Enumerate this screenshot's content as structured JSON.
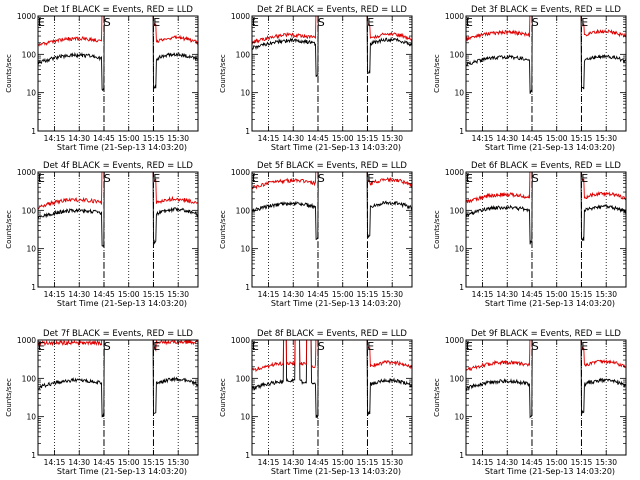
{
  "window": {
    "width": 640,
    "height": 480
  },
  "colors": {
    "events": "#000000",
    "lld": "#e00000",
    "axis": "#000000",
    "background": "#ffffff"
  },
  "chart_data": [
    {
      "type": "line",
      "title": "Det 1f BLACK = Events, RED = LLD",
      "xlabel": "Start Time (21-Sep-13 14:03:20)",
      "ylabel": "Counts/sec",
      "yscale": "log",
      "ylim": [
        1,
        1000
      ],
      "xlim": [
        "14:05",
        "15:42"
      ],
      "x_ticks": [
        "14:15",
        "14:30",
        "14:45",
        "15:00",
        "15:15",
        "15:30"
      ],
      "y_ticks": [
        "1",
        "10",
        "100",
        "1000"
      ],
      "dotted_lines": [
        "14:15",
        "14:30",
        "14:45",
        "15:00",
        "15:15",
        "15:30"
      ],
      "dashed_lines": [
        "14:45",
        "15:15"
      ],
      "markers": [
        {
          "label": "E",
          "x": "14:07"
        },
        {
          "label": "S",
          "x": "14:47"
        },
        {
          "label": "E",
          "x": "15:17"
        }
      ],
      "gap": [
        "14:45",
        "15:15"
      ],
      "series": [
        {
          "name": "Events",
          "color": "#000000",
          "peak": 95,
          "flat": false,
          "drop_before": true,
          "drop_after": true,
          "plateau": 1000
        },
        {
          "name": "LLD",
          "color": "#e00000",
          "peak": 260,
          "flat": false,
          "drop_before": false,
          "drop_after": false,
          "plateau": 1000
        }
      ]
    },
    {
      "type": "line",
      "title": "Det 2f BLACK = Events, RED = LLD",
      "xlabel": "Start Time (21-Sep-13 14:03:20)",
      "ylabel": "Counts/sec",
      "yscale": "log",
      "ylim": [
        1,
        1000
      ],
      "xlim": [
        "14:05",
        "15:42"
      ],
      "x_ticks": [
        "14:15",
        "14:30",
        "14:45",
        "15:00",
        "15:15",
        "15:30"
      ],
      "y_ticks": [
        "1",
        "10",
        "100",
        "1000"
      ],
      "dotted_lines": [
        "14:15",
        "14:30",
        "14:45",
        "15:00",
        "15:15",
        "15:30"
      ],
      "dashed_lines": [
        "14:45",
        "15:15"
      ],
      "markers": [
        {
          "label": "E",
          "x": "14:07"
        },
        {
          "label": "S",
          "x": "14:47"
        },
        {
          "label": "E",
          "x": "15:17"
        }
      ],
      "gap": [
        "14:45",
        "15:15"
      ],
      "series": [
        {
          "name": "Events",
          "color": "#000000",
          "peak": 230,
          "flat": false,
          "drop_before": true,
          "drop_after": true,
          "plateau": 1000
        },
        {
          "name": "LLD",
          "color": "#e00000",
          "peak": 320,
          "flat": false,
          "drop_before": false,
          "drop_after": false,
          "plateau": 1000
        }
      ]
    },
    {
      "type": "line",
      "title": "Det 3f BLACK = Events, RED = LLD",
      "xlabel": "Start Time (21-Sep-13 14:03:20)",
      "ylabel": "Counts/sec",
      "yscale": "log",
      "ylim": [
        1,
        1000
      ],
      "xlim": [
        "14:05",
        "15:42"
      ],
      "x_ticks": [
        "14:15",
        "14:30",
        "14:45",
        "15:00",
        "15:15",
        "15:30"
      ],
      "y_ticks": [
        "1",
        "10",
        "100",
        "1000"
      ],
      "dotted_lines": [
        "14:15",
        "14:30",
        "14:45",
        "15:00",
        "15:15",
        "15:30"
      ],
      "dashed_lines": [
        "14:45",
        "15:15"
      ],
      "markers": [
        {
          "label": "E",
          "x": "14:07"
        },
        {
          "label": "S",
          "x": "14:47"
        },
        {
          "label": "E",
          "x": "15:17"
        }
      ],
      "gap": [
        "14:45",
        "15:15"
      ],
      "series": [
        {
          "name": "Events",
          "color": "#000000",
          "peak": 85,
          "flat": false,
          "drop_before": true,
          "drop_after": true,
          "plateau": 1000
        },
        {
          "name": "LLD",
          "color": "#e00000",
          "peak": 380,
          "flat": false,
          "drop_before": false,
          "drop_after": false,
          "plateau": 1000
        }
      ]
    },
    {
      "type": "line",
      "title": "Det 4f BLACK = Events, RED = LLD",
      "xlabel": "Start Time (21-Sep-13 14:03:20)",
      "ylabel": "Counts/sec",
      "yscale": "log",
      "ylim": [
        1,
        1000
      ],
      "xlim": [
        "14:05",
        "15:42"
      ],
      "x_ticks": [
        "14:15",
        "14:30",
        "14:45",
        "15:00",
        "15:15",
        "15:30"
      ],
      "y_ticks": [
        "1",
        "10",
        "100",
        "1000"
      ],
      "dotted_lines": [
        "14:15",
        "14:30",
        "14:45",
        "15:00",
        "15:15",
        "15:30"
      ],
      "dashed_lines": [
        "14:45",
        "15:15"
      ],
      "markers": [
        {
          "label": "E",
          "x": "14:07"
        },
        {
          "label": "S",
          "x": "14:47"
        },
        {
          "label": "E",
          "x": "15:17"
        }
      ],
      "gap": [
        "14:45",
        "15:15"
      ],
      "series": [
        {
          "name": "Events",
          "color": "#000000",
          "peak": 100,
          "flat": false,
          "drop_before": true,
          "drop_after": true,
          "plateau": 1000
        },
        {
          "name": "LLD",
          "color": "#e00000",
          "peak": 190,
          "flat": false,
          "drop_before": false,
          "drop_after": false,
          "plateau": 1000
        }
      ]
    },
    {
      "type": "line",
      "title": "Det 5f BLACK = Events, RED = LLD",
      "xlabel": "Start Time (21-Sep-13 14:03:20)",
      "ylabel": "Counts/sec",
      "yscale": "log",
      "ylim": [
        1,
        1000
      ],
      "xlim": [
        "14:05",
        "15:42"
      ],
      "x_ticks": [
        "14:15",
        "14:30",
        "14:45",
        "15:00",
        "15:15",
        "15:30"
      ],
      "y_ticks": [
        "1",
        "10",
        "100",
        "1000"
      ],
      "dotted_lines": [
        "14:15",
        "14:30",
        "14:45",
        "15:00",
        "15:15",
        "15:30"
      ],
      "dashed_lines": [
        "14:45",
        "15:15"
      ],
      "markers": [
        {
          "label": "E",
          "x": "14:07"
        },
        {
          "label": "S",
          "x": "14:47"
        },
        {
          "label": "E",
          "x": "15:17"
        }
      ],
      "gap": [
        "14:45",
        "15:15"
      ],
      "series": [
        {
          "name": "Events",
          "color": "#000000",
          "peak": 150,
          "flat": false,
          "drop_before": true,
          "drop_after": true,
          "plateau": 1000
        },
        {
          "name": "LLD",
          "color": "#e00000",
          "peak": 600,
          "flat": false,
          "drop_before": false,
          "drop_after": false,
          "plateau": 1000
        }
      ]
    },
    {
      "type": "line",
      "title": "Det 6f BLACK = Events, RED = LLD",
      "xlabel": "Start Time (21-Sep-13 14:03:20)",
      "ylabel": "Counts/sec",
      "yscale": "log",
      "ylim": [
        1,
        1000
      ],
      "xlim": [
        "14:05",
        "15:42"
      ],
      "x_ticks": [
        "14:15",
        "14:30",
        "14:45",
        "15:00",
        "15:15",
        "15:30"
      ],
      "y_ticks": [
        "1",
        "10",
        "100",
        "1000"
      ],
      "dotted_lines": [
        "14:15",
        "14:30",
        "14:45",
        "15:00",
        "15:15",
        "15:30"
      ],
      "dashed_lines": [
        "14:45",
        "15:15"
      ],
      "markers": [
        {
          "label": "E",
          "x": "14:07"
        },
        {
          "label": "S",
          "x": "14:47"
        },
        {
          "label": "E",
          "x": "15:17"
        }
      ],
      "gap": [
        "14:45",
        "15:15"
      ],
      "series": [
        {
          "name": "Events",
          "color": "#000000",
          "peak": 120,
          "flat": false,
          "drop_before": true,
          "drop_after": true,
          "plateau": 1000
        },
        {
          "name": "LLD",
          "color": "#e00000",
          "peak": 260,
          "flat": false,
          "drop_before": false,
          "drop_after": false,
          "plateau": 1000
        }
      ]
    },
    {
      "type": "line",
      "title": "Det 7f BLACK = Events, RED = LLD",
      "xlabel": "Start Time (21-Sep-13 14:03:20)",
      "ylabel": "Counts/sec",
      "yscale": "log",
      "ylim": [
        1,
        1000
      ],
      "xlim": [
        "14:05",
        "15:42"
      ],
      "x_ticks": [
        "14:15",
        "14:30",
        "14:45",
        "15:00",
        "15:15",
        "15:30"
      ],
      "y_ticks": [
        "1",
        "10",
        "100",
        "1000"
      ],
      "dotted_lines": [
        "14:15",
        "14:30",
        "14:45",
        "15:00",
        "15:15",
        "15:30"
      ],
      "dashed_lines": [
        "14:45",
        "15:15"
      ],
      "markers": [
        {
          "label": "E",
          "x": "14:07"
        },
        {
          "label": "S",
          "x": "14:47"
        },
        {
          "label": "E",
          "x": "15:17"
        }
      ],
      "gap": [
        "14:45",
        "15:15"
      ],
      "series": [
        {
          "name": "Events",
          "color": "#000000",
          "peak": 90,
          "flat": false,
          "drop_before": true,
          "drop_after": true,
          "plateau": 1000
        },
        {
          "name": "LLD",
          "color": "#e00000",
          "peak": 850,
          "flat": true,
          "drop_before": false,
          "drop_after": false,
          "plateau": 1000
        }
      ]
    },
    {
      "type": "line",
      "title": "Det 8f BLACK = Events, RED = LLD",
      "xlabel": "Start Time (21-Sep-13 14:03:20)",
      "ylabel": "Counts/sec",
      "yscale": "log",
      "ylim": [
        1,
        1000
      ],
      "xlim": [
        "14:05",
        "15:42"
      ],
      "x_ticks": [
        "14:15",
        "14:30",
        "14:45",
        "15:00",
        "15:15",
        "15:30"
      ],
      "y_ticks": [
        "1",
        "10",
        "100",
        "1000"
      ],
      "dotted_lines": [
        "14:15",
        "14:30",
        "14:45",
        "15:00",
        "15:15",
        "15:30"
      ],
      "dashed_lines": [
        "14:45",
        "15:15"
      ],
      "markers": [
        {
          "label": "E",
          "x": "14:07"
        },
        {
          "label": "S",
          "x": "14:47"
        },
        {
          "label": "E",
          "x": "15:17"
        }
      ],
      "gap": [
        "14:45",
        "15:15"
      ],
      "series": [
        {
          "name": "Events",
          "color": "#000000",
          "peak": 85,
          "flat": false,
          "drop_before": true,
          "drop_after": true,
          "plateau": 1000,
          "spikes": [
            [
              "14:24",
              "14:26"
            ],
            [
              "14:31",
              "14:34"
            ],
            [
              "14:38",
              "14:41"
            ]
          ]
        },
        {
          "name": "LLD",
          "color": "#e00000",
          "peak": 250,
          "flat": false,
          "drop_before": false,
          "drop_after": false,
          "plateau": 1000,
          "spikes": [
            [
              "14:24",
              "14:26"
            ],
            [
              "14:31",
              "14:34"
            ],
            [
              "14:38",
              "14:41"
            ]
          ]
        }
      ]
    },
    {
      "type": "line",
      "title": "Det 9f BLACK = Events, RED = LLD",
      "xlabel": "Start Time (21-Sep-13 14:03:20)",
      "ylabel": "Counts/sec",
      "yscale": "log",
      "ylim": [
        1,
        1000
      ],
      "xlim": [
        "14:05",
        "15:42"
      ],
      "x_ticks": [
        "14:15",
        "14:30",
        "14:45",
        "15:00",
        "15:15",
        "15:30"
      ],
      "y_ticks": [
        "1",
        "10",
        "100",
        "1000"
      ],
      "dotted_lines": [
        "14:15",
        "14:30",
        "14:45",
        "15:00",
        "15:15",
        "15:30"
      ],
      "dashed_lines": [
        "14:45",
        "15:15"
      ],
      "markers": [
        {
          "label": "E",
          "x": "14:07"
        },
        {
          "label": "S",
          "x": "14:47"
        },
        {
          "label": "E",
          "x": "15:17"
        }
      ],
      "gap": [
        "14:45",
        "15:15"
      ],
      "series": [
        {
          "name": "Events",
          "color": "#000000",
          "peak": 85,
          "flat": false,
          "drop_before": true,
          "drop_after": true,
          "plateau": 1000
        },
        {
          "name": "LLD",
          "color": "#e00000",
          "peak": 260,
          "flat": false,
          "drop_before": false,
          "drop_after": false,
          "plateau": 1000
        }
      ]
    }
  ]
}
